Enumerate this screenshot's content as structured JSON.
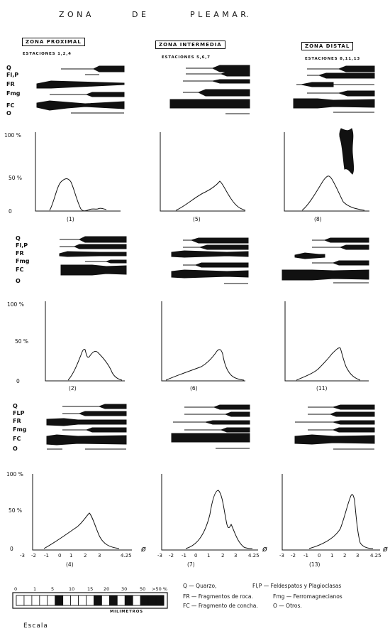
{
  "title_letters": [
    "Z O N A",
    "D E",
    "P L E A M A R."
  ],
  "columns": [
    {
      "zone": "ZONA PROXIMAL",
      "stations": "ESTACIONES 1,2,4"
    },
    {
      "zone": "ZONA INTERMEDIA",
      "stations": "ESTACIONES 5,6,7"
    },
    {
      "zone": "ZONA DISTAL",
      "stations": "ESTACIONES 8,11,13"
    }
  ],
  "component_labels": {
    "row1": [
      "Q",
      "Fl,P",
      "FR",
      "Fmg",
      "FC",
      "O"
    ],
    "row2": [
      "Q",
      "Fl,P",
      "FR",
      "Fmg",
      "FC",
      "O"
    ],
    "row3": [
      "Q",
      "FLP",
      "FR",
      "Fmg",
      "FC",
      "O"
    ]
  },
  "y_labels": {
    "row1": [
      "100 %",
      "50 %",
      "0"
    ],
    "row2": [
      "100 %",
      "50 %",
      "0"
    ],
    "row3": [
      "100 %",
      "50 %",
      "0"
    ]
  },
  "panel_ids": [
    "(1)",
    "(5)",
    "(8)",
    "(2)",
    "(6)",
    "(11)",
    "(4)",
    "(7)",
    "(13)"
  ],
  "x_ticks": [
    "-3",
    "-2",
    "-1",
    "0",
    "1",
    "2",
    "3",
    "4.25"
  ],
  "phi_symbol": "ø",
  "legend": {
    "q": "Q — Quarzo,",
    "flp": "Fl,P — Feldespatos y Plagioclasas",
    "fr": "FR — Fragmentos de roca.",
    "fmg": "Fmg — Ferromagnecianos",
    "fc": "FC — Fragmento de concha.",
    "o": "O — Otros."
  },
  "scale": {
    "numbers": [
      "0",
      "1",
      "5",
      "10",
      "15",
      "20",
      "30",
      "50",
      ">50 %"
    ],
    "unit": "MILIMETROS",
    "caption": "Escala"
  }
}
